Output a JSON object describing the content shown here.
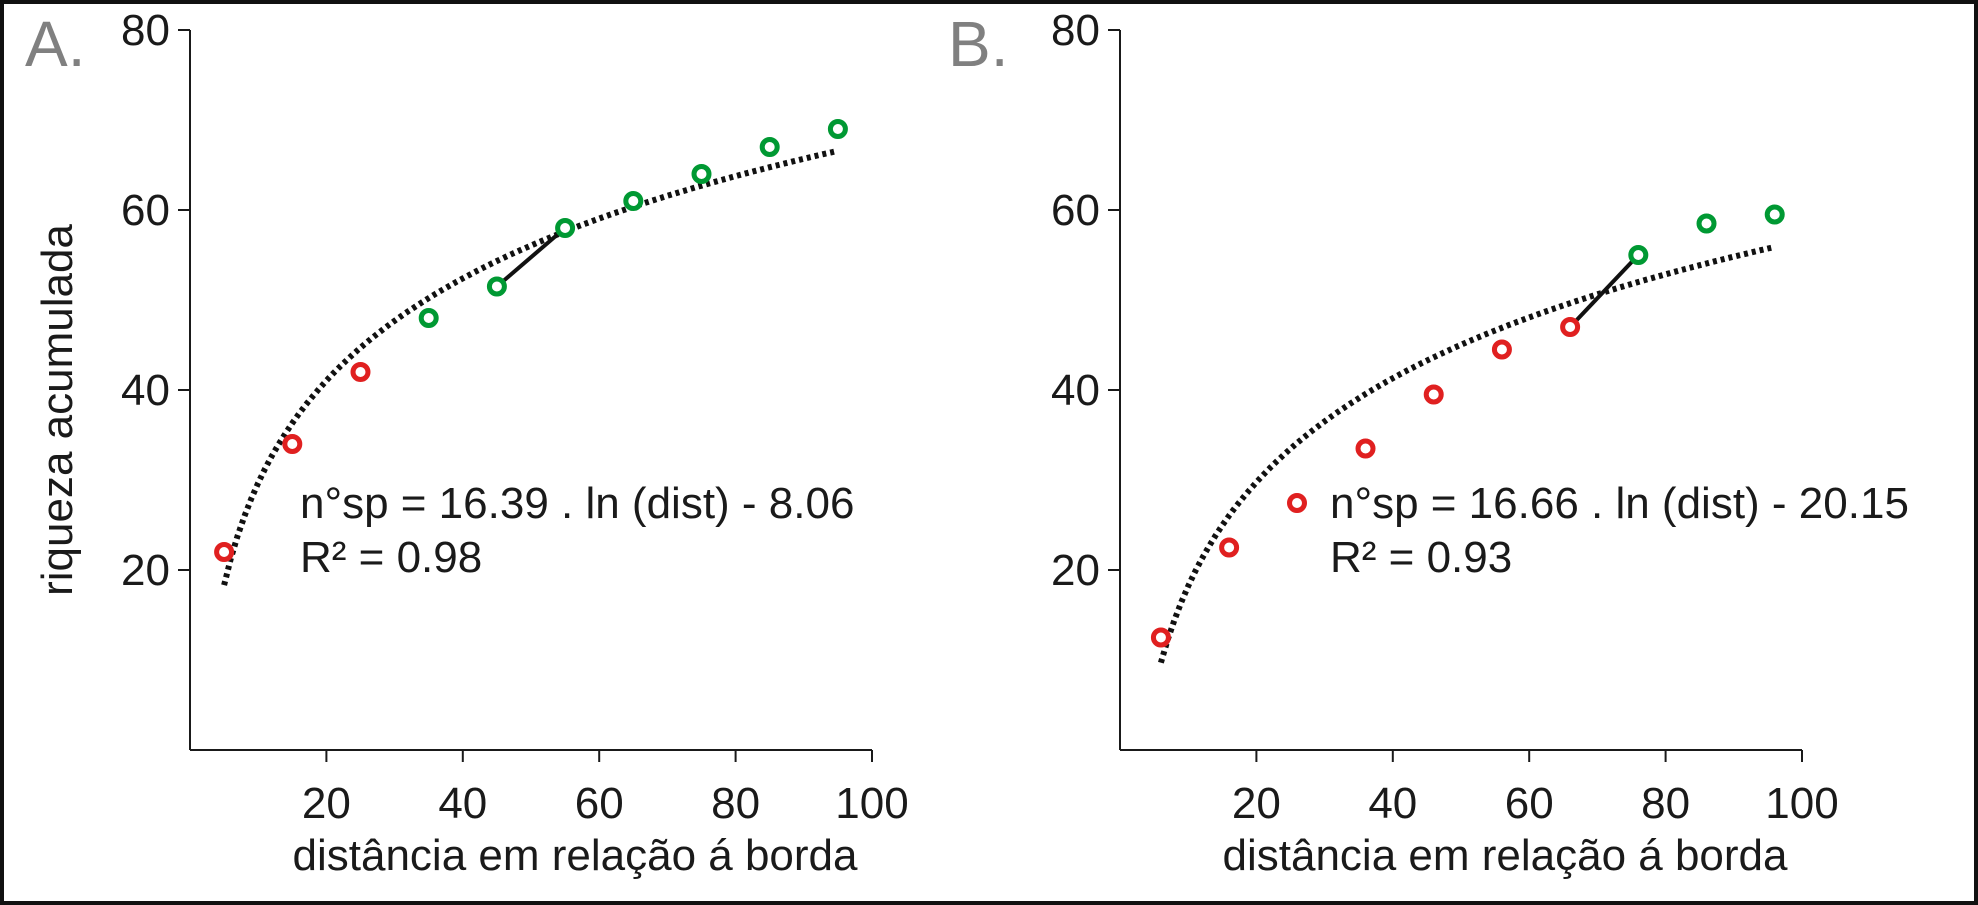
{
  "chart_data": [
    {
      "panel_label": "A.",
      "type": "scatter",
      "xlabel": "distância em relação á borda",
      "ylabel": "riqueza acumulada",
      "xlim": [
        0,
        100
      ],
      "ylim": [
        0,
        80
      ],
      "xticks": [
        20,
        40,
        60,
        80,
        100
      ],
      "yticks": [
        20,
        40,
        60,
        80
      ],
      "series": [
        {
          "name": "red",
          "color": "#e02020",
          "x": [
            5,
            15,
            25
          ],
          "y": [
            22,
            34,
            42
          ]
        },
        {
          "name": "green",
          "color": "#009933",
          "x": [
            35,
            45,
            55,
            65,
            75,
            85,
            95
          ],
          "y": [
            48,
            51.5,
            58,
            61,
            64,
            67,
            69
          ]
        }
      ],
      "fit": {
        "type": "log",
        "a": 16.39,
        "b": -8.06,
        "x_range": [
          5,
          95
        ]
      },
      "segment": {
        "x": [
          45,
          55
        ],
        "y": [
          51.5,
          58
        ]
      },
      "equation": "n°sp = 16.39 . ln (dist) - 8.06",
      "r2": "R² = 0.98",
      "legend_marker": false
    },
    {
      "panel_label": "B.",
      "type": "scatter",
      "xlabel": "distância em relação á borda",
      "ylabel": "",
      "xlim": [
        0,
        100
      ],
      "ylim": [
        0,
        80
      ],
      "xticks": [
        20,
        40,
        60,
        80,
        100
      ],
      "yticks": [
        20,
        40,
        60,
        80
      ],
      "series": [
        {
          "name": "red",
          "color": "#e02020",
          "x": [
            6,
            16,
            36,
            46,
            56,
            66
          ],
          "y": [
            12.5,
            22.5,
            33.5,
            39.5,
            44.5,
            47
          ]
        },
        {
          "name": "green",
          "color": "#009933",
          "x": [
            76,
            86,
            96
          ],
          "y": [
            55,
            58.5,
            59.5
          ]
        }
      ],
      "fit": {
        "type": "log",
        "a": 16.66,
        "b": -20.15,
        "x_range": [
          6,
          96
        ]
      },
      "segment": {
        "x": [
          66,
          76
        ],
        "y": [
          47,
          55
        ]
      },
      "equation": "n°sp = 16.66 . ln (dist) - 20.15",
      "r2": "R² = 0.93",
      "legend_marker": true
    }
  ]
}
